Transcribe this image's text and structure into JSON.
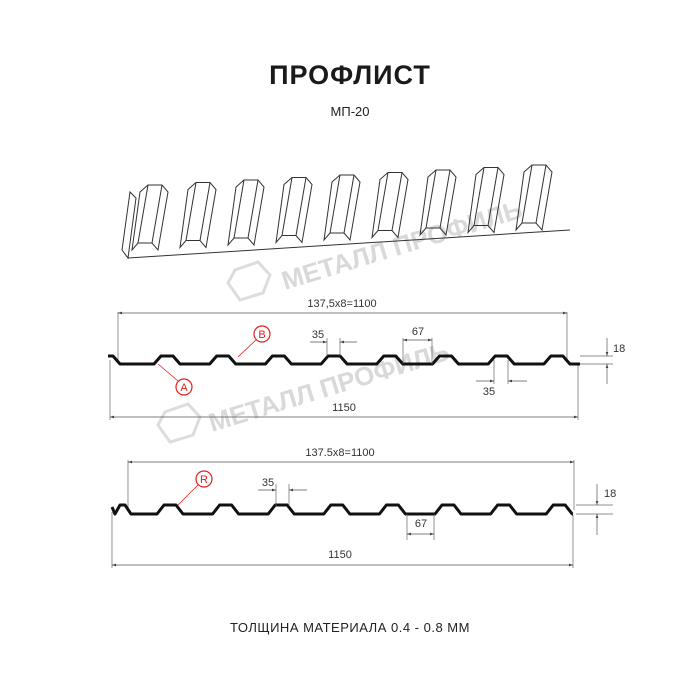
{
  "header": {
    "title": "ПРОФЛИСТ",
    "subtitle": "МП-20"
  },
  "watermark": "МЕТАЛЛ ПРОФИЛЬ",
  "profile_a": {
    "pitch_label": "137,5x8=1100",
    "width_label": "1150",
    "rib_top_label": "35",
    "rib_bottom_label": "35",
    "rib_base_label": "67",
    "height_label": "18",
    "marker_a": "A",
    "marker_b": "B"
  },
  "profile_r": {
    "pitch_label": "137.5x8=1100",
    "width_label": "1150",
    "rib_top_label": "35",
    "rib_base_label": "67",
    "height_label": "18",
    "marker_r": "R"
  },
  "footer": {
    "thickness": "ТОЛЩИНА МАТЕРИАЛА 0.4 - 0.8 ММ"
  },
  "colors": {
    "profile": "#111111",
    "marker": "#e41e1e",
    "dimension": "#555555",
    "watermark": "#d9d9d9"
  }
}
